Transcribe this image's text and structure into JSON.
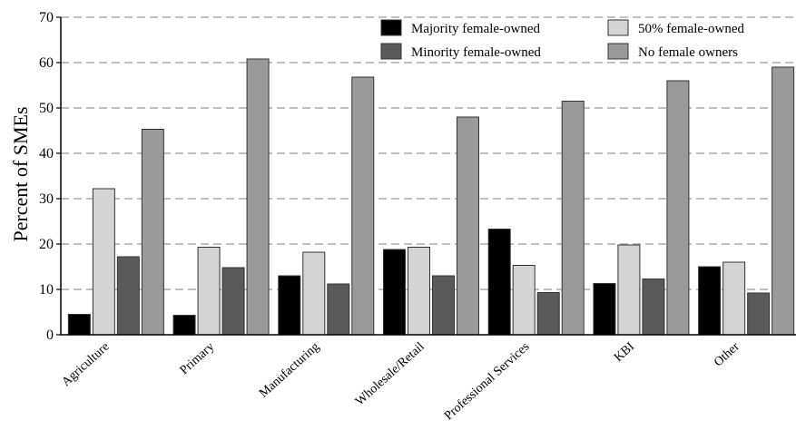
{
  "chart_data": {
    "type": "bar",
    "title": "",
    "xlabel": "",
    "ylabel": "Percent of SMEs",
    "ylim": [
      0,
      70
    ],
    "yticks": [
      0,
      10,
      20,
      30,
      40,
      50,
      60,
      70
    ],
    "grid": "horizontal dashed",
    "legend_position": "top-right",
    "categories": [
      "Agriculture",
      "Primary",
      "Manufacturing",
      "Wholesale/Retail",
      "Professional Services",
      "KBI",
      "Other"
    ],
    "series": [
      {
        "name": "Majority female-owned",
        "color": "#000000",
        "values": [
          4.5,
          4.3,
          13.0,
          18.8,
          23.3,
          11.3,
          15.0
        ]
      },
      {
        "name": "50% female-owned",
        "color": "#d4d4d4",
        "values": [
          32.2,
          19.3,
          18.2,
          19.3,
          15.3,
          19.8,
          16.0
        ]
      },
      {
        "name": "Minority female-owned",
        "color": "#5a5a5a",
        "values": [
          17.2,
          14.8,
          11.2,
          13.0,
          9.3,
          12.3,
          9.2
        ]
      },
      {
        "name": "No female owners",
        "color": "#9a9a9a",
        "values": [
          45.3,
          60.8,
          56.8,
          48.0,
          51.5,
          56.0,
          59.0
        ]
      }
    ]
  }
}
